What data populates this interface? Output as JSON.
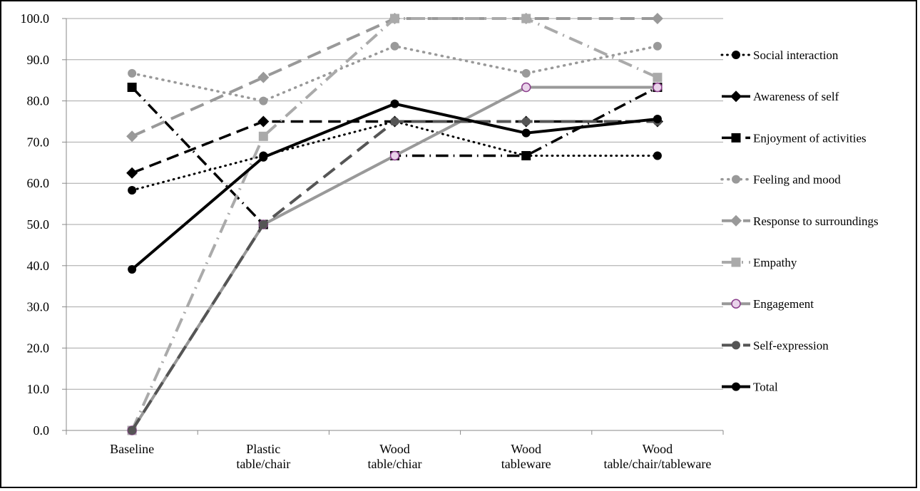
{
  "chart_data": {
    "type": "line",
    "title": "",
    "xlabel": "",
    "ylabel": "",
    "categories": [
      [
        "Baseline"
      ],
      [
        "Plastic",
        "table/chair"
      ],
      [
        "Wood",
        "table/chiar"
      ],
      [
        "Wood",
        "tableware"
      ],
      [
        "Wood",
        "table/chair/tableware"
      ]
    ],
    "ylim": [
      0,
      100
    ],
    "yticks": [
      "0.0",
      "10.0",
      "20.0",
      "30.0",
      "40.0",
      "50.0",
      "60.0",
      "70.0",
      "80.0",
      "90.0",
      "100.0"
    ],
    "grid": true,
    "legend": "right",
    "series": [
      {
        "name": "Social interaction",
        "values": [
          58.3,
          66.7,
          75.0,
          66.7,
          66.7
        ],
        "color": "#000000",
        "dash": "dot",
        "marker": "circle",
        "width": 3
      },
      {
        "name": "Awareness of self",
        "values": [
          62.5,
          75.0,
          75.0,
          75.0,
          75.0
        ],
        "color": "#000000",
        "dash": "dash",
        "marker": "diamond",
        "width": 3.5
      },
      {
        "name": "Enjoyment of activities",
        "values": [
          83.3,
          50.0,
          66.7,
          66.7,
          83.3
        ],
        "color": "#000000",
        "dash": "dashdot",
        "marker": "square",
        "width": 3.5
      },
      {
        "name": "Feeling and mood",
        "values": [
          86.7,
          80.0,
          93.3,
          86.7,
          93.3
        ],
        "color": "#999999",
        "dash": "dot",
        "marker": "circle",
        "width": 3.5
      },
      {
        "name": "Response to surroundings",
        "values": [
          71.4,
          85.7,
          100.0,
          100.0,
          100.0
        ],
        "color": "#999999",
        "dash": "dash",
        "marker": "diamond",
        "width": 4
      },
      {
        "name": "Empathy",
        "values": [
          0.0,
          71.4,
          100.0,
          100.0,
          85.7
        ],
        "color": "#aaaaaa",
        "dash": "dashdot",
        "marker": "square",
        "width": 4
      },
      {
        "name": "Engagement",
        "values": [
          0.0,
          50.0,
          66.7,
          83.3,
          83.3
        ],
        "color": "#999999",
        "dash": "solid",
        "marker": "circle-open",
        "width": 4
      },
      {
        "name": "Self-expression",
        "values": [
          0.0,
          50.0,
          75.0,
          75.0,
          75.0
        ],
        "color": "#555555",
        "dash": "dash",
        "marker": "circle",
        "width": 4
      },
      {
        "name": "Total",
        "values": [
          39.1,
          66.3,
          79.3,
          72.2,
          75.6
        ],
        "color": "#000000",
        "dash": "solid",
        "marker": "circle",
        "width": 4
      }
    ]
  }
}
